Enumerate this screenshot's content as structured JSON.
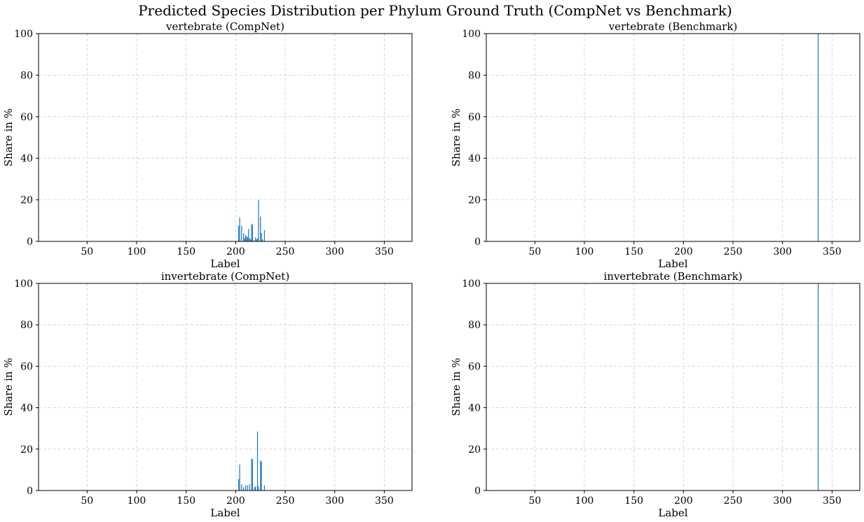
{
  "figure_title": "Predicted Species Distribution per Phylum Ground Truth (CompNet vs Benchmark)",
  "colors": {
    "bar": "#1f77b4"
  },
  "chart_data": [
    {
      "type": "bar",
      "title": "vertebrate (CompNet)",
      "xlabel": "Label",
      "ylabel": "Share in %",
      "xlim": [
        1,
        378
      ],
      "ylim": [
        0,
        100
      ],
      "xticks": [
        50,
        100,
        150,
        200,
        250,
        300,
        350
      ],
      "yticks": [
        0,
        20,
        40,
        60,
        80,
        100
      ],
      "grid": true,
      "x": [
        203,
        204,
        206,
        208,
        209,
        210,
        211,
        212,
        213,
        214,
        215,
        216,
        217,
        218,
        220,
        221,
        222,
        223,
        225,
        226,
        227,
        229
      ],
      "values": [
        7.5,
        11.5,
        7.5,
        4,
        1.5,
        3,
        2.5,
        2,
        6,
        1.5,
        1,
        8.5,
        8,
        0.5,
        2,
        1,
        1.5,
        20,
        12,
        4,
        1,
        5.5
      ]
    },
    {
      "type": "bar",
      "title": "vertebrate (Benchmark)",
      "xlabel": "Label",
      "ylabel": "Share in %",
      "xlim": [
        1,
        378
      ],
      "ylim": [
        0,
        100
      ],
      "xticks": [
        50,
        100,
        150,
        200,
        250,
        300,
        350
      ],
      "yticks": [
        0,
        20,
        40,
        60,
        80,
        100
      ],
      "grid": true,
      "x": [
        336
      ],
      "values": [
        100
      ]
    },
    {
      "type": "bar",
      "title": "invertebrate (CompNet)",
      "xlabel": "Label",
      "ylabel": "Share in %",
      "xlim": [
        1,
        378
      ],
      "ylim": [
        0,
        100
      ],
      "xticks": [
        50,
        100,
        150,
        200,
        250,
        300,
        350
      ],
      "yticks": [
        0,
        20,
        40,
        60,
        80,
        100
      ],
      "grid": true,
      "x": [
        203,
        204,
        206,
        208,
        210,
        212,
        214,
        216,
        217,
        219,
        220,
        222,
        223,
        225,
        226,
        229
      ],
      "values": [
        5.5,
        12.5,
        3,
        1.5,
        2.5,
        2.5,
        3,
        15.5,
        15,
        1.5,
        2,
        28.5,
        2,
        14.5,
        14,
        2.5
      ]
    },
    {
      "type": "bar",
      "title": "invertebrate (Benchmark)",
      "xlabel": "Label",
      "ylabel": "Share in %",
      "xlim": [
        1,
        378
      ],
      "ylim": [
        0,
        100
      ],
      "xticks": [
        50,
        100,
        150,
        200,
        250,
        300,
        350
      ],
      "yticks": [
        0,
        20,
        40,
        60,
        80,
        100
      ],
      "grid": true,
      "x": [
        336
      ],
      "values": [
        100
      ]
    }
  ]
}
